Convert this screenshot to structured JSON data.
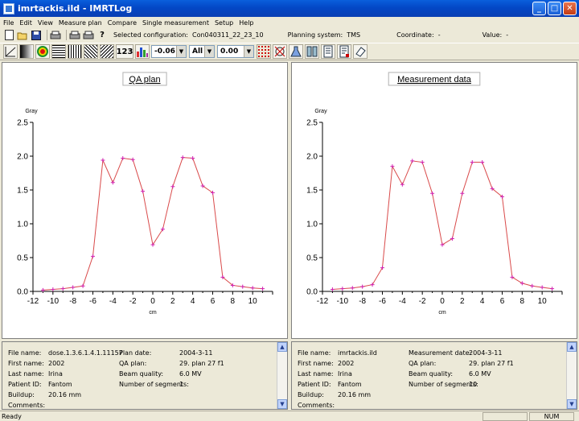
{
  "window": {
    "title": "imrtackis.ild - IMRTLog",
    "minimize": "_",
    "maximize": "□",
    "close": "✕"
  },
  "menu": [
    "File",
    "Edit",
    "View",
    "Measure plan",
    "Compare",
    "Single measurement",
    "Setup",
    "Help"
  ],
  "toolbar": {
    "selected_configuration_label": "Selected configuration:",
    "selected_configuration_value": "Con040311_22_23_10",
    "planning_system_label": "Planning system:",
    "planning_system_value": "TMS",
    "coordinate_label": "Coordinate:",
    "coordinate_value": "-",
    "value_label": "Value:",
    "value_value": "-",
    "num_button": "123",
    "combo1": "-0.06",
    "combo2": "All",
    "combo3": "0.00"
  },
  "icons": {
    "toolbar1": [
      "new-file-icon",
      "open-folder-icon",
      "save-icon",
      "print-icon",
      "print-preview-icon",
      "print-setup-icon",
      "help-icon"
    ],
    "toolbar2": [
      "line-profile-icon",
      "grayscale-icon",
      "isodose-icon",
      "horizontal-lines-icon",
      "vertical-lines-icon",
      "diagonal-lines-icon",
      "diagonal-lines-alt-icon",
      "numeric-values-icon",
      "histogram-icon",
      "grid-dots-icon",
      "crossed-out-icon",
      "flask-icon",
      "columns-icon",
      "report-icon",
      "report-alt-icon",
      "eraser-icon"
    ]
  },
  "plans": [
    {
      "title": "QA plan",
      "chart_data": {
        "type": "line",
        "title": "QA plan",
        "xlabel": "cm",
        "ylabel": "Gray",
        "xlim": [
          -12,
          12
        ],
        "ylim": [
          0,
          2.5
        ],
        "xticks": [
          -12,
          -10,
          -8,
          -6,
          -4,
          -2,
          0,
          2,
          4,
          6,
          8,
          10
        ],
        "yticks": [
          0.0,
          0.5,
          1.0,
          1.5,
          2.0,
          2.5
        ],
        "x": [
          -11,
          -10,
          -9,
          -8,
          -7,
          -6,
          -5,
          -4,
          -3,
          -2,
          -1,
          0,
          1,
          2,
          3,
          4,
          5,
          6,
          7,
          8,
          9,
          10,
          11
        ],
        "series": [
          {
            "values": [
              0.02,
              0.03,
              0.04,
              0.06,
              0.08,
              0.52,
              1.94,
              1.61,
              1.97,
              1.95,
              1.48,
              0.69,
              0.92,
              1.55,
              1.98,
              1.97,
              1.56,
              1.46,
              0.21,
              0.09,
              0.07,
              0.05,
              0.04
            ]
          }
        ],
        "grid": false,
        "line_color": "#d94a4a",
        "marker_color": "#d020b0"
      },
      "info": {
        "file_name_label": "File name:",
        "file_name": "dose.1.3.6.1.4.1.11157",
        "first_name_label": "First name:",
        "first_name": "2002",
        "last_name_label": "Last name:",
        "last_name": "Irina",
        "patient_id_label": "Patient ID:",
        "patient_id": "Fantom",
        "buildup_label": "Buildup:",
        "buildup": "20.16 mm",
        "comments_label": "Comments:",
        "date_label": "Plan date:",
        "date": "2004-3-11",
        "qa_plan_label": "QA plan:",
        "qa_plan": "",
        "qa_plan_value": "29. plan 27 f1",
        "beam_quality_label": "Beam quality:",
        "beam_quality": "6.0 MV",
        "segments_label": "Number of segments:",
        "segments": "1"
      }
    },
    {
      "title": "Measurement data",
      "chart_data": {
        "type": "line",
        "title": "Measurement data",
        "xlabel": "cm",
        "ylabel": "Gray",
        "xlim": [
          -12,
          12
        ],
        "ylim": [
          0,
          2.5
        ],
        "xticks": [
          -12,
          -10,
          -8,
          -6,
          -4,
          -2,
          0,
          2,
          4,
          6,
          8,
          10
        ],
        "yticks": [
          0.0,
          0.5,
          1.0,
          1.5,
          2.0,
          2.5
        ],
        "x": [
          -11,
          -10,
          -9,
          -8,
          -7,
          -6,
          -5,
          -4,
          -3,
          -2,
          -1,
          0,
          1,
          2,
          3,
          4,
          5,
          6,
          7,
          8,
          9,
          10,
          11
        ],
        "series": [
          {
            "values": [
              0.03,
              0.04,
              0.05,
              0.07,
              0.1,
              0.35,
              1.85,
              1.58,
              1.93,
              1.91,
              1.45,
              0.69,
              0.78,
              1.45,
              1.91,
              1.91,
              1.52,
              1.4,
              0.21,
              0.12,
              0.08,
              0.06,
              0.04
            ]
          }
        ],
        "grid": false,
        "line_color": "#d94a4a",
        "marker_color": "#d020b0"
      },
      "info": {
        "file_name_label": "File name:",
        "file_name": "imrtackis.ild",
        "first_name_label": "First name:",
        "first_name": "2002",
        "last_name_label": "Last name:",
        "last_name": "Irina",
        "patient_id_label": "Patient ID:",
        "patient_id": "Fantom",
        "buildup_label": "Buildup:",
        "buildup": "20.16 mm",
        "comments_label": "Comments:",
        "date_label": "Measurement date:",
        "date": "2004-3-11",
        "qa_plan_label": "QA plan:",
        "qa_plan": "",
        "qa_plan_value": "29. plan 27 f1",
        "beam_quality_label": "Beam quality:",
        "beam_quality": "6.0 MV",
        "segments_label": "Number of segments:",
        "segments": "10"
      }
    }
  ],
  "status": {
    "text": "Ready",
    "num": "NUM"
  }
}
